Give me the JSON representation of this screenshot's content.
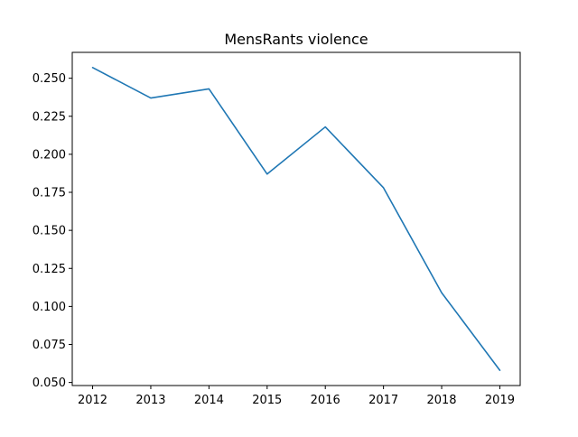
{
  "chart_data": {
    "type": "line",
    "title": "MensRants violence",
    "xlabel": "",
    "ylabel": "",
    "x": [
      2012,
      2013,
      2014,
      2015,
      2016,
      2017,
      2018,
      2019
    ],
    "series": [
      {
        "name": "",
        "color": "#1f77b4",
        "values": [
          0.257,
          0.237,
          0.243,
          0.187,
          0.218,
          0.178,
          0.109,
          0.058
        ]
      }
    ],
    "xlim": [
      2011.65,
      2019.35
    ],
    "ylim": [
      0.048,
      0.267
    ],
    "x_ticks": [
      "2012",
      "2013",
      "2014",
      "2015",
      "2016",
      "2017",
      "2018",
      "2019"
    ],
    "y_ticks": [
      "0.050",
      "0.075",
      "0.100",
      "0.125",
      "0.150",
      "0.175",
      "0.200",
      "0.225",
      "0.250"
    ],
    "grid": false,
    "legend": "none"
  }
}
